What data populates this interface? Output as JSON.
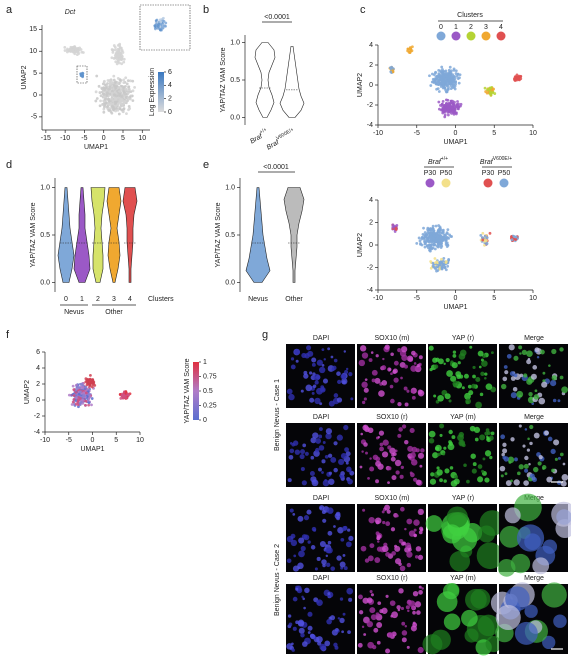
{
  "panels": {
    "a": {
      "label": "a",
      "title": "Dct",
      "xlabel": "UMAP1",
      "ylabel": "UMAP2",
      "xlim": [
        -16,
        12
      ],
      "ylim": [
        -8,
        16
      ],
      "xticks": [
        -15,
        -10,
        -5,
        0,
        5,
        10
      ],
      "yticks": [
        -5,
        0,
        5,
        10,
        15
      ],
      "colorbar": {
        "title": "Log Expression",
        "lim": [
          0,
          6
        ],
        "ticks": [
          0,
          2,
          4,
          6
        ]
      }
    },
    "b": {
      "label": "b",
      "pvalue": "<0.0001",
      "ylabel": "YAP/TAZ VAM Score",
      "ylim": [
        -0.1,
        1.1
      ],
      "yticks": [
        {
          "value": 0,
          "label": "0.0"
        },
        0.5,
        {
          "value": 1,
          "label": "1.0"
        }
      ],
      "categories": [
        {
          "name": "Braf",
          "genotype": "+/+"
        },
        {
          "name": "Braf",
          "genotype": "V600E/+"
        }
      ]
    },
    "c": {
      "label": "c",
      "clusters": {
        "xlabel": "UMAP1",
        "ylabel": "UMAP2",
        "xlim": [
          -10,
          10
        ],
        "ylim": [
          -4,
          4
        ],
        "xticks": [
          -10,
          -5,
          0,
          5,
          10
        ],
        "yticks": [
          -4,
          -2,
          0,
          2,
          4
        ],
        "legend_title": "Clusters",
        "legend": [
          {
            "label": "0",
            "color": "#7fa8d8"
          },
          {
            "label": "1",
            "color": "#9b59c6"
          },
          {
            "label": "2",
            "color": "#b5d334"
          },
          {
            "label": "3",
            "color": "#f0a830"
          },
          {
            "label": "4",
            "color": "#e05050"
          }
        ]
      },
      "genotype": {
        "xlabel": "UMAP1",
        "ylabel": "UMAP2",
        "xlim": [
          -10,
          10
        ],
        "ylim": [
          -4,
          4
        ],
        "xticks": [
          -10,
          -5,
          0,
          5,
          10
        ],
        "yticks": [
          -4,
          -2,
          0,
          2,
          4
        ],
        "legend": [
          {
            "name": "Braf",
            "genotype": "+/+",
            "items": [
              {
                "label": "P30",
                "color": "#9b59c6"
              },
              {
                "label": "P50",
                "color": "#f3e08a"
              }
            ]
          },
          {
            "name": "Braf",
            "genotype": "V600E/+",
            "items": [
              {
                "label": "P30",
                "color": "#e05050"
              },
              {
                "label": "P50",
                "color": "#7fa8d8"
              }
            ]
          }
        ]
      }
    },
    "d": {
      "label": "d",
      "ylabel": "YAP/TAZ VAM Score",
      "ylim": [
        -0.1,
        1.1
      ],
      "yticks": [
        {
          "value": 0,
          "label": "0.0"
        },
        0.5,
        {
          "value": 1,
          "label": "1.0"
        }
      ],
      "categories": [
        "0",
        "1",
        "2",
        "3",
        "4"
      ],
      "xlabel": "Clusters",
      "groups": [
        "Nevus",
        "Other"
      ]
    },
    "e": {
      "label": "e",
      "pvalue": "<0.0001",
      "ylabel": "YAP/TAZ VAM Score",
      "ylim": [
        -0.1,
        1.1
      ],
      "yticks": [
        {
          "value": 0,
          "label": "0.0"
        },
        0.5,
        {
          "value": 1,
          "label": "1.0"
        }
      ],
      "categories": [
        "Nevus",
        "Other"
      ]
    },
    "f": {
      "label": "f",
      "xlabel": "UMAP1",
      "ylabel": "UMAP2",
      "xlim": [
        -10,
        10
      ],
      "ylim": [
        -4,
        6
      ],
      "xticks": [
        -10,
        -5,
        0,
        5,
        10
      ],
      "yticks": [
        -4,
        -2,
        0,
        2,
        4,
        6
      ],
      "colorbar": {
        "title": "YAP/TAZ VAM Score",
        "lim": [
          0,
          1
        ],
        "ticks": [
          0,
          0.25,
          0.5,
          0.75,
          1
        ]
      }
    },
    "g": {
      "label": "g",
      "cases": [
        "Benign Nevus - Case 1",
        "Benign Nevus - Case 2"
      ],
      "rows": [
        [
          "DAPI",
          "SOX10 (m)",
          "YAP (r)",
          "Merge"
        ],
        [
          "DAPI",
          "SOX10 (r)",
          "YAP (m)",
          "Merge"
        ],
        [
          "DAPI",
          "SOX10 (m)",
          "YAP (r)",
          "Merge"
        ],
        [
          "DAPI",
          "SOX10 (r)",
          "YAP (m)",
          "Merge"
        ]
      ]
    }
  }
}
